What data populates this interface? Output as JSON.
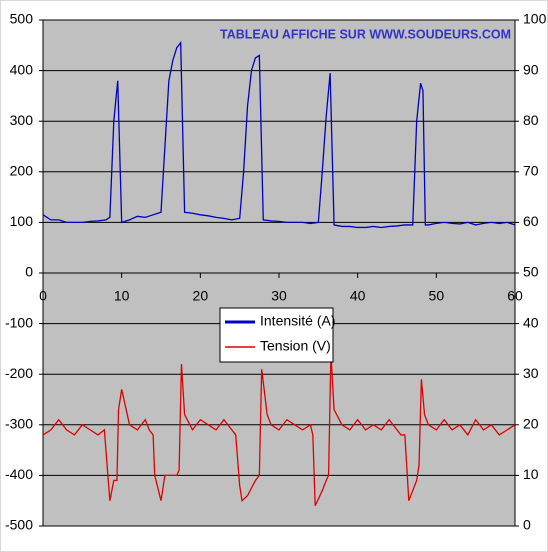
{
  "chart_data": {
    "type": "line",
    "annotation": "TABLEAU AFFICHE SUR WWW.SOUDEURS.COM",
    "xlim": [
      0,
      60
    ],
    "xticks": [
      0,
      10,
      20,
      30,
      40,
      50,
      60
    ],
    "ylim": [
      -500,
      500
    ],
    "yticks": [
      -500,
      -400,
      -300,
      -200,
      -100,
      0,
      100,
      200,
      300,
      400,
      500
    ],
    "y2lim": [
      0,
      100
    ],
    "y2ticks": [
      0,
      10,
      20,
      30,
      40,
      50,
      60,
      70,
      80,
      90,
      100
    ],
    "grid": true,
    "legend": "center",
    "series": [
      {
        "name": "Intensité (A)",
        "color": "#0000c0",
        "x": [
          0,
          1,
          2,
          3,
          4,
          5,
          6,
          7,
          8,
          8.5,
          9,
          9.5,
          10,
          11,
          12,
          13,
          14,
          15,
          15.5,
          16,
          16.5,
          17,
          17.5,
          18,
          19,
          20,
          21,
          22,
          23,
          24,
          25,
          25.5,
          26,
          26.5,
          27,
          27.5,
          28,
          29,
          30,
          31,
          32,
          33,
          34,
          35,
          35.5,
          36,
          36.5,
          37,
          38,
          39,
          40,
          41,
          42,
          43,
          44,
          45,
          46,
          47,
          47.5,
          48,
          48.3,
          48.6,
          49,
          50,
          51,
          52,
          53,
          54,
          55,
          56,
          57,
          58,
          59,
          60
        ],
        "values": [
          115,
          105,
          105,
          100,
          100,
          100,
          102,
          103,
          105,
          110,
          300,
          380,
          100,
          105,
          112,
          110,
          115,
          120,
          250,
          380,
          420,
          445,
          455,
          120,
          118,
          115,
          113,
          110,
          108,
          105,
          108,
          200,
          330,
          400,
          425,
          430,
          105,
          103,
          102,
          100,
          100,
          100,
          98,
          100,
          200,
          310,
          395,
          95,
          92,
          92,
          90,
          90,
          92,
          90,
          92,
          93,
          95,
          95,
          300,
          375,
          360,
          95,
          95,
          98,
          100,
          98,
          97,
          100,
          95,
          98,
          100,
          98,
          100,
          95
        ]
      },
      {
        "name": "Tension (V)",
        "color": "#e00000",
        "axis": "y2",
        "x": [
          0,
          1,
          2,
          3,
          4,
          5,
          6,
          7,
          7.8,
          8,
          8.5,
          9,
          9.4,
          9.6,
          10,
          11,
          12,
          13,
          13.5,
          14,
          14.2,
          15,
          15.5,
          17,
          17.3,
          17.6,
          18,
          19,
          20,
          21,
          22,
          23,
          24,
          24.5,
          25,
          25.3,
          26,
          27,
          27.5,
          27.8,
          28.5,
          29,
          30,
          31,
          32,
          33,
          34,
          34.3,
          34.6,
          35.5,
          36,
          36.3,
          36.6,
          37,
          38,
          39,
          40,
          41,
          42,
          43,
          44,
          45,
          45.5,
          46,
          46.5,
          47.5,
          47.8,
          48.1,
          48.5,
          49,
          50,
          51,
          52,
          53,
          54,
          55,
          56,
          57,
          58,
          59,
          60
        ],
        "values": [
          18,
          19,
          21,
          19,
          18,
          20,
          19,
          18,
          19,
          15,
          5,
          9,
          9,
          23,
          27,
          20,
          19,
          21,
          19,
          18,
          10,
          5,
          10,
          10,
          11,
          32,
          22,
          19,
          21,
          20,
          19,
          21,
          19,
          18,
          8,
          5,
          6,
          9,
          10,
          31,
          22,
          20,
          19,
          21,
          20,
          19,
          20,
          18,
          4,
          7,
          9,
          10,
          34,
          23,
          20,
          19,
          21,
          19,
          20,
          19,
          21,
          19,
          18,
          18,
          5,
          9,
          12,
          29,
          22,
          20,
          19,
          21,
          19,
          20,
          18,
          21,
          19,
          20,
          18,
          19,
          20
        ]
      }
    ]
  }
}
